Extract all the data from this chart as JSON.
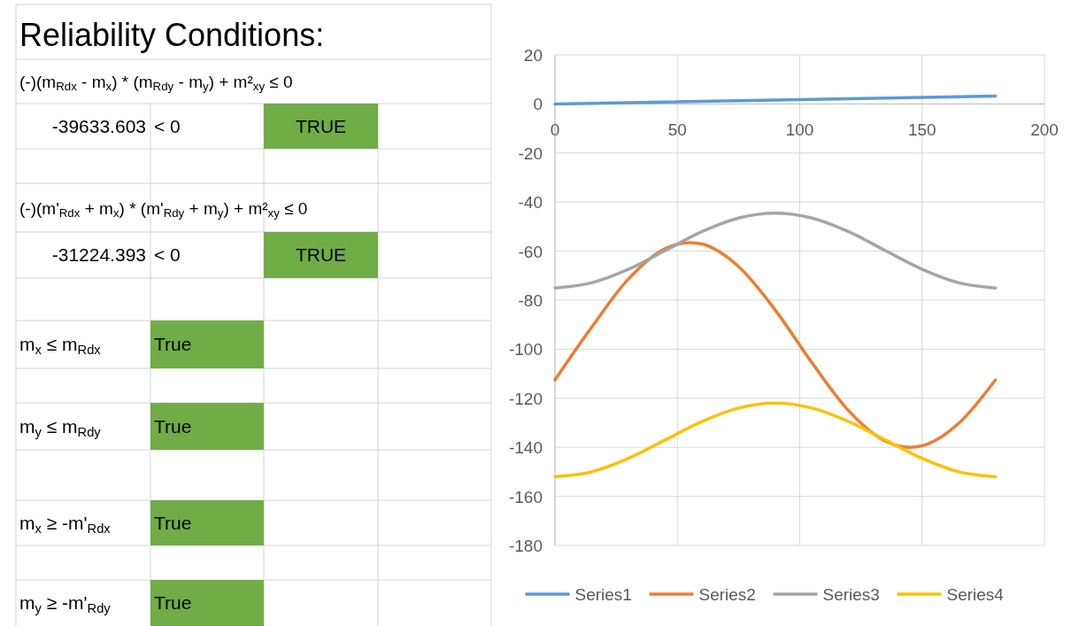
{
  "chart_data": [
    {
      "type": "other",
      "title": "Reliability Conditions:",
      "annotations": [
        "(-)(m$_{Rdx}$ - m$_{x}$) * (m$_{Rdy}$ - m$_{y}$) + m²$_{xy}$ ≤ 0",
        "-39633.603",
        "< 0",
        "TRUE",
        "(-)(m'$_{Rdx}$ + m$_{x}$) * (m'$_{Rdy}$ + m$_{y}$) + m²$_{xy}$ ≤ 0",
        "-31224.393",
        "< 0",
        "TRUE",
        "m$_{x}$ ≤ m$_{Rdx}$",
        "True",
        "m$_{y}$ ≤ m$_{Rdy}$",
        "True",
        "m$_{x}$ ≥ -m'$_{Rdx}$",
        "True",
        "m$_{y}$ ≥ -m'$_{Rdy}$",
        "True"
      ]
    },
    {
      "type": "line",
      "xlim": [
        0,
        200
      ],
      "xticks": [
        0,
        50,
        100,
        150,
        200
      ],
      "ylim": [
        -180,
        20
      ],
      "yticks": [
        -180,
        -160,
        -140,
        -120,
        -100,
        -80,
        -60,
        -40,
        -20,
        0,
        20
      ],
      "grid": true,
      "legend": "bottom",
      "series": [
        {
          "name": "Series1",
          "color": "#5b9bd5",
          "x": [
            0,
            180
          ],
          "values": [
            0,
            3.2
          ]
        },
        {
          "name": "Series2",
          "color": "#ed7d31",
          "x": [
            0,
            15,
            30,
            45,
            55,
            60,
            75,
            90,
            105,
            120,
            135,
            145,
            150,
            165,
            180
          ],
          "values": [
            -112.5,
            -91,
            -71.4,
            -59,
            -56.5,
            -57.1,
            -66.3,
            -84,
            -105.5,
            -125.1,
            -137.5,
            -140,
            -139.4,
            -130.2,
            -112.5
          ]
        },
        {
          "name": "Series3",
          "color": "#a5a5a5",
          "x": [
            0,
            15,
            30,
            45,
            60,
            75,
            90,
            105,
            120,
            135,
            150,
            165,
            180
          ],
          "values": [
            -75,
            -72.9,
            -67.4,
            -59.8,
            -52.1,
            -46.5,
            -44.5,
            -46.5,
            -52.1,
            -59.8,
            -67.4,
            -72.9,
            -75
          ]
        },
        {
          "name": "Series4",
          "color": "#ffc000",
          "x": [
            0,
            15,
            30,
            45,
            60,
            75,
            90,
            105,
            120,
            135,
            150,
            165,
            180
          ],
          "values": [
            -152,
            -150,
            -144.5,
            -137,
            -129.5,
            -124,
            -122,
            -124,
            -129.5,
            -137,
            -144.5,
            -150,
            -152
          ]
        }
      ]
    }
  ]
}
